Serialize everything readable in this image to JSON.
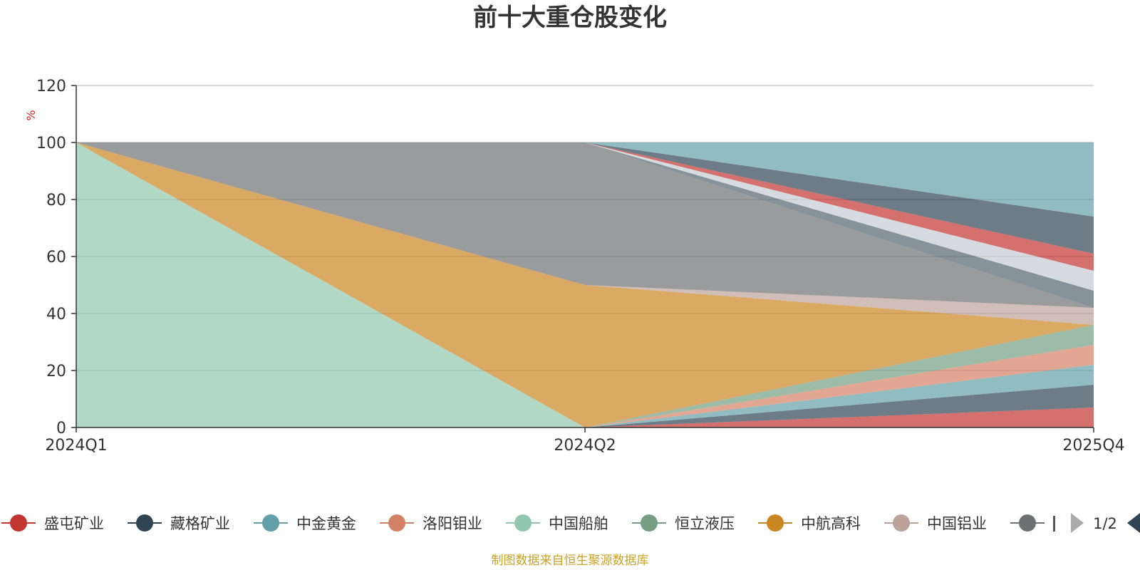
{
  "chart_data": {
    "type": "area",
    "stacked": true,
    "percent_stacked": true,
    "title": "前十大重仓股变化",
    "ylabel": "%",
    "xlabel": "",
    "categories": [
      "2024Q1",
      "2024Q2",
      "2025Q4"
    ],
    "ylim": [
      0,
      120
    ],
    "yticks": [
      0,
      20,
      40,
      60,
      80,
      100,
      120
    ],
    "grid": true,
    "legend": {
      "position": "bottom",
      "page": "1/2"
    },
    "series": [
      {
        "name": "盛屯矿业",
        "color": "#c23531",
        "values": [
          0,
          0,
          7
        ]
      },
      {
        "name": "藏格矿业",
        "color": "#2f4554",
        "values": [
          0,
          0,
          8
        ]
      },
      {
        "name": "中金黄金",
        "color": "#61a0a8",
        "values": [
          0,
          0,
          7
        ]
      },
      {
        "name": "洛阳钼业",
        "color": "#d48265",
        "values": [
          0,
          0,
          7
        ]
      },
      {
        "name": "中国船舶",
        "color": "#91c7ae",
        "values": [
          100,
          0,
          0
        ]
      },
      {
        "name": "恒立液压",
        "color": "#749f83",
        "values": [
          0,
          0,
          7
        ]
      },
      {
        "name": "中航高科",
        "color": "#ca8622",
        "values": [
          0,
          50,
          0
        ]
      },
      {
        "name": "中国铝业",
        "color": "#bda29a",
        "values": [
          0,
          0,
          6
        ]
      },
      {
        "name": "",
        "color": "#6e7074",
        "values": [
          0,
          50,
          0
        ]
      },
      {
        "name": "",
        "color": "#546570",
        "values": [
          0,
          0,
          6
        ]
      },
      {
        "name": "",
        "color": "#c4ccd3",
        "values": [
          0,
          0,
          7
        ]
      },
      {
        "name": "",
        "color": "#c23531",
        "values": [
          0,
          0,
          6
        ]
      },
      {
        "name": "",
        "color": "#2f4554",
        "values": [
          0,
          0,
          13
        ]
      },
      {
        "name": "",
        "color": "#61a0a8",
        "values": [
          0,
          0,
          26
        ]
      }
    ]
  },
  "legend_items": [
    {
      "label": "盛屯矿业",
      "color": "#c23531"
    },
    {
      "label": "藏格矿业",
      "color": "#2f4554"
    },
    {
      "label": "中金黄金",
      "color": "#61a0a8"
    },
    {
      "label": "洛阳钼业",
      "color": "#d48265"
    },
    {
      "label": "中国船舶",
      "color": "#91c7ae"
    },
    {
      "label": "恒立液压",
      "color": "#749f83"
    },
    {
      "label": "中航高科",
      "color": "#ca8622"
    },
    {
      "label": "中国铝业",
      "color": "#bda29a"
    },
    {
      "label": "",
      "color": "#6e7074"
    }
  ],
  "legend_page": "1/2",
  "source_note": "制图数据来自恒生聚源数据库"
}
